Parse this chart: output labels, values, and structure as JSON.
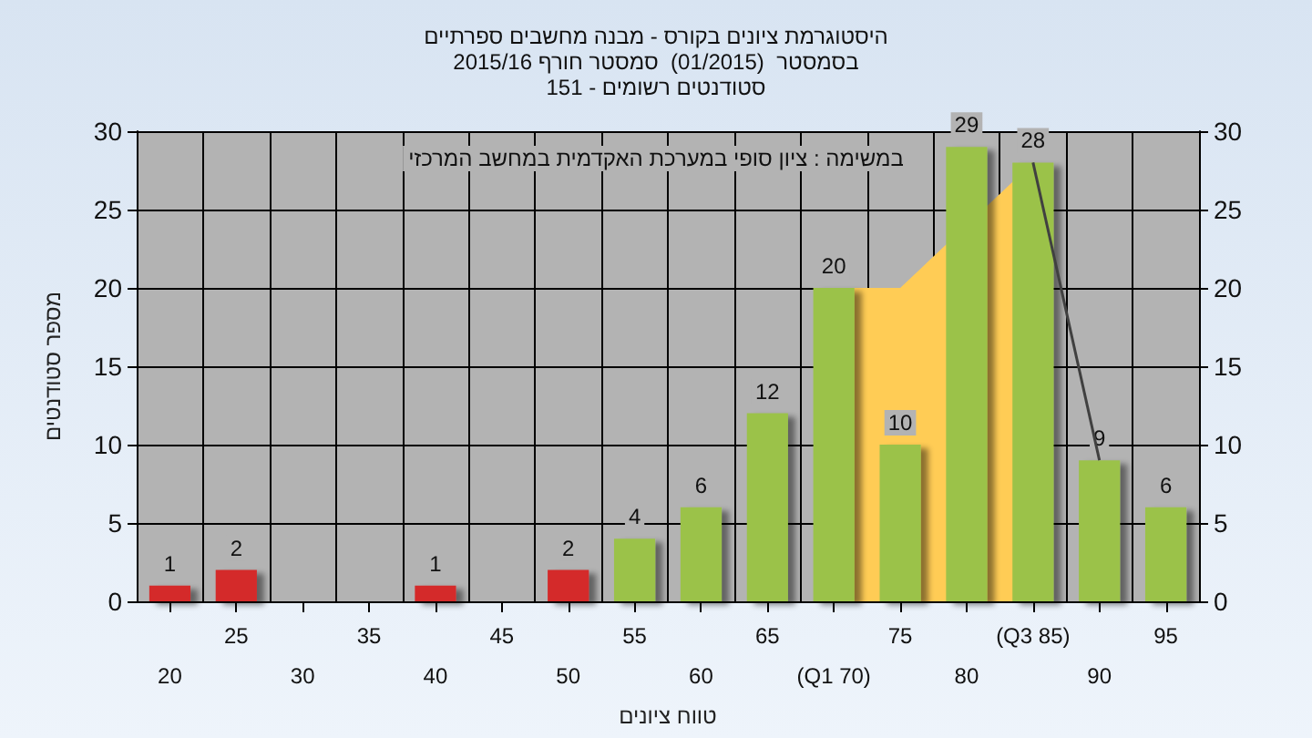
{
  "chart_data": {
    "type": "bar",
    "title": "היסטוגרמת ציונים בקורס - מבנה מחשבים ספרתיים",
    "subtitle": "בסמסטר  (01/2015)  סמסטר חורף 2015/16\nסטודנטים רשומים - 151",
    "xlabel": "טווח ציונים",
    "ylabel": "מספר סטודנטים",
    "annotations": [
      "במשימה : ציון סופי במערכת האקדמית במחשב המרכזי"
    ],
    "categories": [
      "20",
      "25",
      "30",
      "35",
      "40",
      "45",
      "50",
      "55",
      "60",
      "65",
      "(Q1 70)",
      "75",
      "80",
      "(Q3 85)",
      "90",
      "95"
    ],
    "series": [
      {
        "type": "area",
        "color": "#ffcc55",
        "values": [
          null,
          null,
          null,
          null,
          null,
          null,
          null,
          null,
          null,
          null,
          20,
          20,
          null,
          28,
          null,
          null
        ]
      },
      {
        "type": "line",
        "color": "#404040",
        "values": [
          null,
          null,
          null,
          null,
          null,
          null,
          null,
          null,
          null,
          null,
          null,
          null,
          null,
          28,
          9,
          null
        ]
      },
      {
        "values": [
          1,
          2,
          0,
          0,
          1,
          0,
          2,
          4,
          6,
          12,
          20,
          10,
          29,
          28,
          9,
          6
        ],
        "colors": [
          "#d42a2a",
          "#d42a2a",
          "#d42a2a",
          "#d42a2a",
          "#d42a2a",
          "#d42a2a",
          "#d42a2a",
          "#9bc24a",
          "#9bc24a",
          "#9bc24a",
          "#9bc24a",
          "#9bc24a",
          "#9bc24a",
          "#9bc24a",
          "#9bc24a",
          "#9bc24a"
        ],
        "value_labels": [
          "1",
          "2",
          null,
          null,
          "1",
          null,
          "2",
          "4",
          "6",
          "12",
          "20",
          "10",
          "29",
          "28",
          "9",
          "6"
        ]
      }
    ],
    "ylim": [
      0,
      30
    ],
    "yticks": [
      0,
      5,
      10,
      15,
      20,
      25,
      30
    ],
    "y2lim": [
      0,
      30
    ],
    "y2ticks": [
      0,
      5,
      10,
      15,
      20,
      25,
      30
    ],
    "grid": true,
    "marker": "none"
  }
}
